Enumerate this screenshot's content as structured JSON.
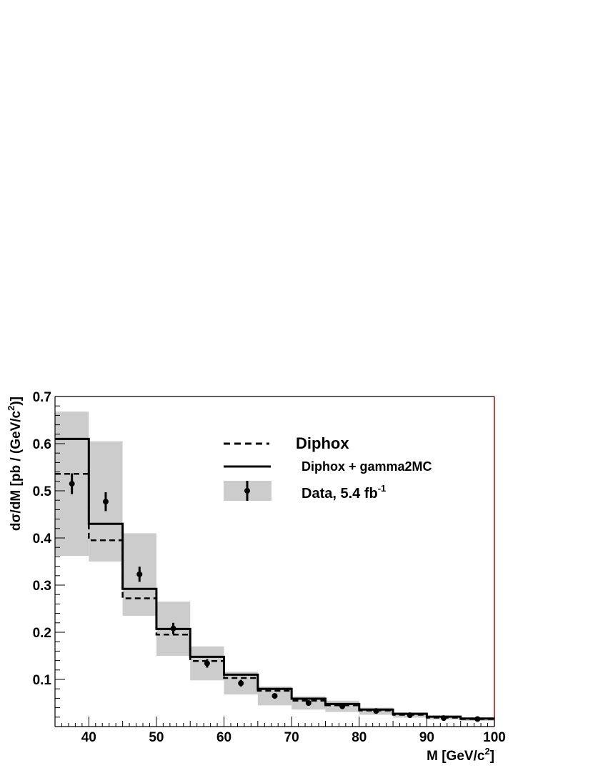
{
  "chart_data": {
    "type": "bar",
    "xlabel_main": "M  [GeV/c",
    "xlabel_sup": "2",
    "xlabel_end": "]",
    "ylabel_main": "dσ/dM  [pb / (GeV/c",
    "ylabel_sup": "2",
    "ylabel_end": ")]",
    "xlim": [
      35,
      100
    ],
    "ylim": [
      0,
      0.7
    ],
    "x_ticks": [
      40,
      50,
      60,
      70,
      80,
      90,
      100
    ],
    "y_ticks": [
      0.1,
      0.2,
      0.3,
      0.4,
      0.5,
      0.6,
      0.7
    ],
    "legend_placement": "top-right",
    "bin_edges": [
      35,
      40,
      45,
      50,
      55,
      60,
      65,
      70,
      75,
      80,
      85,
      90,
      95,
      100
    ],
    "series": [
      {
        "name": "Diphox",
        "style": "dashed-step",
        "values": [
          0.536,
          0.395,
          0.272,
          0.195,
          0.139,
          0.103,
          0.076,
          0.055,
          0.045,
          0.034,
          0.025,
          0.019,
          0.016
        ]
      },
      {
        "name": "Diphox + gamma2MC",
        "style": "solid-step",
        "values": [
          0.61,
          0.43,
          0.292,
          0.207,
          0.148,
          0.11,
          0.08,
          0.059,
          0.048,
          0.036,
          0.027,
          0.021,
          0.017
        ]
      },
      {
        "name_main": "Data, 5.4 fb",
        "name_sup": "-1",
        "style": "points-with-band",
        "x": [
          37.5,
          42.5,
          47.5,
          52.5,
          57.5,
          62.5,
          67.5,
          72.5,
          77.5,
          82.5,
          87.5,
          92.5,
          97.5
        ],
        "values": [
          0.515,
          0.477,
          0.323,
          0.208,
          0.134,
          0.092,
          0.065,
          0.05,
          0.043,
          0.033,
          0.024,
          0.018,
          0.016
        ],
        "stat_err": [
          0.022,
          0.02,
          0.016,
          0.012,
          0.009,
          0.007,
          0.005,
          0.004,
          0.003,
          0.003,
          0.002,
          0.002,
          0.002
        ],
        "band_low": [
          0.362,
          0.35,
          0.235,
          0.15,
          0.098,
          0.068,
          0.045,
          0.036,
          0.031,
          0.025,
          0.019,
          0.015,
          0.012
        ],
        "band_high": [
          0.668,
          0.605,
          0.41,
          0.265,
          0.17,
          0.116,
          0.085,
          0.064,
          0.055,
          0.04,
          0.03,
          0.023,
          0.019
        ]
      }
    ],
    "colors": {
      "band": "#cccccc",
      "line": "#000000",
      "frame_right": "#a01010"
    }
  }
}
